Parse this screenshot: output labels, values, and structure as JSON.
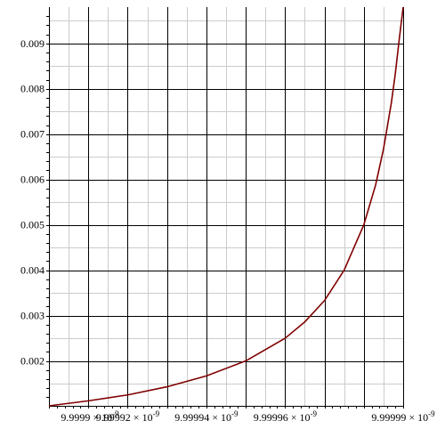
{
  "chart_data": {
    "type": "line",
    "xlim": [
      9.9999e-09,
      9.99999e-09
    ],
    "ylim": [
      0.00101,
      0.0098
    ],
    "grid": true,
    "x_ticks": [
      {
        "value": 9.9999e-09,
        "mantissa": "9.9999",
        "exp": "-9"
      },
      {
        "value": 9.99992e-09,
        "mantissa": "9.99992",
        "exp": "-9"
      },
      {
        "value": 9.99994e-09,
        "mantissa": "9.99994",
        "exp": "-9"
      },
      {
        "value": 9.99996e-09,
        "mantissa": "9.99996",
        "exp": "-9"
      },
      {
        "value": 9.99999e-09,
        "mantissa": "9.99999",
        "exp": "-9"
      }
    ],
    "x_major_values": [
      9.9999e-09,
      9.99991e-09,
      9.99992e-09,
      9.99993e-09,
      9.99994e-09,
      9.99995e-09,
      9.99996e-09,
      9.99997e-09,
      9.99998e-09,
      9.99999e-09
    ],
    "x_minor_values": [
      9.999905e-09,
      9.999915e-09,
      9.999925e-09,
      9.999935e-09,
      9.999945e-09,
      9.999955e-09,
      9.999965e-09,
      9.999975e-09,
      9.999985e-09
    ],
    "y_ticks": [
      {
        "value": 0.002,
        "label": "0.002"
      },
      {
        "value": 0.003,
        "label": "0.003"
      },
      {
        "value": 0.004,
        "label": "0.004"
      },
      {
        "value": 0.005,
        "label": "0.005"
      },
      {
        "value": 0.006,
        "label": "0.006"
      },
      {
        "value": 0.007,
        "label": "0.007"
      },
      {
        "value": 0.008,
        "label": "0.008"
      },
      {
        "value": 0.009,
        "label": "0.009"
      }
    ],
    "y_minor_values": [
      0.0015,
      0.0025,
      0.0035,
      0.0045,
      0.0055,
      0.0065,
      0.0075,
      0.0085,
      0.0095
    ],
    "series": [
      {
        "color": "#800000",
        "x": [
          9.9999e-09,
          9.99991e-09,
          9.99992e-09,
          9.99993e-09,
          9.99994e-09,
          9.99995e-09,
          9.99996e-09,
          9.999965e-09,
          9.99997e-09,
          9.999975e-09,
          9.99998e-09,
          9.999983e-09,
          9.999985e-09,
          9.999987e-09,
          9.999988e-09,
          9.999989e-09,
          9.99999e-09
        ],
        "y": [
          0.00101,
          0.00112,
          0.00125,
          0.00143,
          0.00167,
          0.002,
          0.0025,
          0.00286,
          0.00333,
          0.004,
          0.005,
          0.00588,
          0.00667,
          0.00769,
          0.00833,
          0.00909,
          0.0098
        ]
      }
    ]
  }
}
